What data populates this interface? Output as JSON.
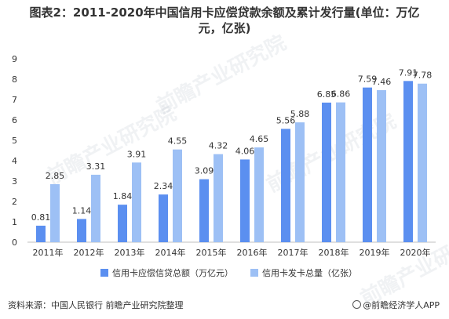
{
  "title_line1": "图表2：2011-2020年中国信用卡应偿贷款余额及累计发行量(单位：万亿",
  "title_line2": "元，亿张)",
  "source": "资料来源：中国人民银行 前瞻产业研究院整理",
  "brand": "@前瞻经济学人APP",
  "watermark": "前瞻产业研究院",
  "colors": {
    "series1": "#5b8ff0",
    "series2": "#9dc0f5",
    "axis": "#bfbfbf",
    "text": "#333333"
  },
  "chart_data": {
    "type": "bar",
    "categories": [
      "2011年",
      "2012年",
      "2013年",
      "2014年",
      "2015年",
      "2016年",
      "2017年",
      "2018年",
      "2019年",
      "2020年"
    ],
    "series": [
      {
        "name": "信用卡应偿信贷总额（万亿元）",
        "values": [
          0.81,
          1.14,
          1.84,
          2.34,
          3.09,
          4.06,
          5.56,
          6.85,
          7.59,
          7.91
        ]
      },
      {
        "name": "信用卡发卡总量（亿张）",
        "values": [
          2.85,
          3.31,
          3.91,
          4.55,
          4.32,
          4.65,
          5.88,
          6.86,
          7.46,
          7.78
        ]
      }
    ],
    "ylim": [
      0,
      9
    ],
    "yticks": [
      0,
      1,
      2,
      3,
      4,
      5,
      6,
      7,
      8,
      9
    ],
    "legend": "bottom",
    "grid": false
  }
}
